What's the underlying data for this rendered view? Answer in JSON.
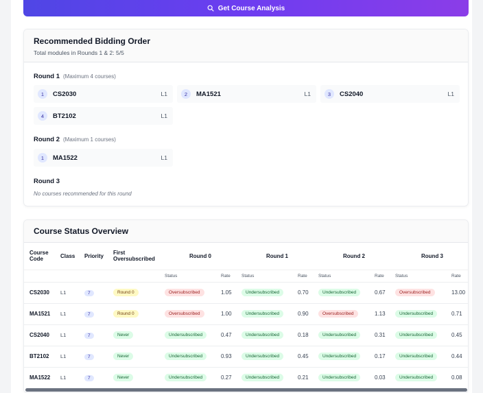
{
  "actions": {
    "analysis_label": "Get Course Analysis",
    "analysis_icon": "search-icon"
  },
  "recommend": {
    "title": "Recommended Bidding Order",
    "subtitle": "Total modules in Rounds 1 & 2: 5/5",
    "rounds": [
      {
        "label": "Round 1",
        "max": "(Maximum 4 courses)",
        "courses": [
          {
            "n": "1",
            "code": "CS2030",
            "level": "L1"
          },
          {
            "n": "2",
            "code": "MA1521",
            "level": "L1"
          },
          {
            "n": "3",
            "code": "CS2040",
            "level": "L1"
          },
          {
            "n": "4",
            "code": "BT2102",
            "level": "L1"
          }
        ]
      },
      {
        "label": "Round 2",
        "max": "(Maximum 1 courses)",
        "courses": [
          {
            "n": "1",
            "code": "MA1522",
            "level": "L1"
          }
        ]
      },
      {
        "label": "Round 3",
        "max": "",
        "empty": "No courses recommended for this round"
      }
    ]
  },
  "overview": {
    "title": "Course Status Overview",
    "headers": {
      "code": "Course Code",
      "class": "Class",
      "priority": "Priority",
      "first": "First Oversubscribed",
      "r0": "Round 0",
      "r1": "Round 1",
      "r2": "Round 2",
      "r3": "Round 3",
      "status": "Status",
      "rate": "Rate"
    },
    "rows": [
      {
        "code": "CS2030",
        "cls": "L1",
        "pri": "7",
        "first": "Round 0",
        "r0": [
          "Oversubscribed",
          "1.05"
        ],
        "r1": [
          "Undersubscribed",
          "0.70"
        ],
        "r2": [
          "Undersubscribed",
          "0.67"
        ],
        "r3": [
          "Oversubscribed",
          "13.00"
        ]
      },
      {
        "code": "MA1521",
        "cls": "L1",
        "pri": "7",
        "first": "Round 0",
        "r0": [
          "Oversubscribed",
          "1.00"
        ],
        "r1": [
          "Undersubscribed",
          "0.90"
        ],
        "r2": [
          "Oversubscribed",
          "1.13"
        ],
        "r3": [
          "Undersubscribed",
          "0.71"
        ]
      },
      {
        "code": "CS2040",
        "cls": "L1",
        "pri": "7",
        "first": "Never",
        "r0": [
          "Undersubscribed",
          "0.47"
        ],
        "r1": [
          "Undersubscribed",
          "0.18"
        ],
        "r2": [
          "Undersubscribed",
          "0.31"
        ],
        "r3": [
          "Undersubscribed",
          "0.45"
        ]
      },
      {
        "code": "BT2102",
        "cls": "L1",
        "pri": "7",
        "first": "Never",
        "r0": [
          "Undersubscribed",
          "0.93"
        ],
        "r1": [
          "Undersubscribed",
          "0.45"
        ],
        "r2": [
          "Undersubscribed",
          "0.17"
        ],
        "r3": [
          "Undersubscribed",
          "0.44"
        ]
      },
      {
        "code": "MA1522",
        "cls": "L1",
        "pri": "7",
        "first": "Never",
        "r0": [
          "Undersubscribed",
          "0.27"
        ],
        "r1": [
          "Undersubscribed",
          "0.21"
        ],
        "r2": [
          "Undersubscribed",
          "0.03"
        ],
        "r3": [
          "Undersubscribed",
          "0.08"
        ]
      }
    ]
  },
  "colors": {
    "accent": "#6d3df0",
    "oversubscribed": "#fee2e2",
    "undersubscribed": "#dcfce7",
    "first_round0": "#fef9c3"
  }
}
